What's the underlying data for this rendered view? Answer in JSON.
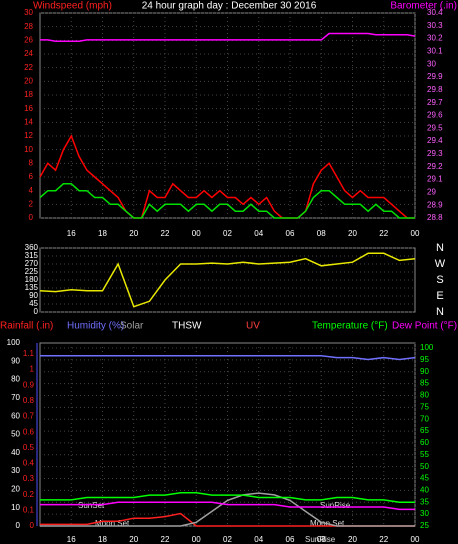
{
  "chart_data": [
    {
      "type": "line",
      "title": "24 hour graph day : December 30 2016",
      "ylabel": "Windspeed (mph)",
      "y2label": "Barometer (.in)",
      "x": [
        0,
        0.5,
        1,
        1.5,
        2,
        2.5,
        3,
        3.5,
        4,
        4.5,
        5,
        5.5,
        6,
        6.5,
        7,
        7.5,
        8,
        8.5,
        9,
        9.5,
        10,
        10.5,
        11,
        11.5,
        12,
        12.5,
        13,
        13.5,
        14,
        14.5,
        15,
        15.5,
        16,
        16.5,
        17,
        17.5,
        18,
        18.5,
        19,
        19.5,
        20,
        20.5,
        21,
        21.5,
        22,
        22.5,
        23,
        23.5,
        24
      ],
      "xlim": [
        0,
        24
      ],
      "xticks": [
        {
          "value": 2,
          "label": "16"
        },
        {
          "value": 4,
          "label": "18"
        },
        {
          "value": 6,
          "label": "20"
        },
        {
          "value": 8,
          "label": "22"
        },
        {
          "value": 10,
          "label": "00"
        },
        {
          "value": 12,
          "label": "02"
        },
        {
          "value": 14,
          "label": "04"
        },
        {
          "value": 16,
          "label": "06"
        },
        {
          "value": 18,
          "label": "08"
        },
        {
          "value": 20,
          "label": "20"
        },
        {
          "value": 22,
          "label": "22"
        },
        {
          "value": 24,
          "label": "00"
        }
      ],
      "ylim": [
        0,
        30
      ],
      "yticks": [
        0,
        2,
        4,
        6,
        8,
        10,
        12,
        14,
        16,
        18,
        20,
        22,
        24,
        26,
        28,
        30
      ],
      "y2lim": [
        28.8,
        30.4
      ],
      "y2ticks": [
        28.8,
        28.9,
        29,
        29.1,
        29.2,
        29.3,
        29.4,
        29.5,
        29.6,
        29.7,
        29.8,
        29.9,
        30,
        30.1,
        30.2,
        30.3,
        30.4
      ],
      "series": [
        {
          "color": "#ff0000",
          "values": [
            6,
            8,
            7,
            10,
            12,
            9,
            7,
            6,
            5,
            4,
            3,
            1,
            0,
            0,
            4,
            3,
            3,
            5,
            4,
            3,
            3,
            4,
            3,
            4,
            3,
            3,
            2,
            3,
            2,
            3,
            1,
            0,
            0,
            0,
            1,
            5,
            7,
            8,
            6,
            4,
            3,
            4,
            3,
            3,
            3,
            2,
            1,
            0,
            0
          ]
        },
        {
          "color": "#00e000",
          "values": [
            3,
            4,
            4,
            5,
            5,
            4,
            4,
            3,
            3,
            2,
            2,
            1,
            0,
            0,
            2,
            1,
            2,
            2,
            2,
            1,
            2,
            2,
            1,
            2,
            2,
            1,
            1,
            2,
            1,
            1,
            0,
            0,
            0,
            0,
            1,
            3,
            4,
            4,
            3,
            2,
            2,
            2,
            1,
            2,
            1,
            1,
            0,
            0,
            0
          ]
        },
        {
          "color": "#ff00ff",
          "axis": "y2",
          "values": [
            30.19,
            30.19,
            30.18,
            30.18,
            30.18,
            30.18,
            30.19,
            30.19,
            30.19,
            30.19,
            30.19,
            30.19,
            30.19,
            30.19,
            30.19,
            30.19,
            30.19,
            30.19,
            30.19,
            30.19,
            30.19,
            30.19,
            30.19,
            30.19,
            30.19,
            30.19,
            30.19,
            30.19,
            30.19,
            30.19,
            30.19,
            30.19,
            30.19,
            30.19,
            30.19,
            30.19,
            30.19,
            30.24,
            30.24,
            30.24,
            30.24,
            30.24,
            30.24,
            30.23,
            30.23,
            30.23,
            30.23,
            30.23,
            30.22
          ]
        }
      ]
    },
    {
      "type": "line",
      "x": [
        0,
        1,
        2,
        3,
        4,
        5,
        6,
        7,
        8,
        9,
        10,
        11,
        12,
        13,
        14,
        15,
        16,
        17,
        18,
        19,
        20,
        21,
        22,
        23,
        24
      ],
      "xlim": [
        0,
        24
      ],
      "ylim": [
        0,
        360
      ],
      "yticks": [
        0,
        45,
        90,
        135,
        180,
        225,
        270,
        315,
        360
      ],
      "y2lim": [
        0,
        360
      ],
      "y2ticks": [
        {
          "value": 360,
          "label": "N"
        },
        {
          "value": 270,
          "label": "W"
        },
        {
          "value": 180,
          "label": "S"
        },
        {
          "value": 90,
          "label": "E"
        },
        {
          "value": 0,
          "label": "N"
        }
      ],
      "series": [
        {
          "color": "#e8e800",
          "values": [
            120,
            115,
            125,
            120,
            120,
            270,
            30,
            60,
            180,
            270,
            270,
            275,
            270,
            280,
            270,
            275,
            280,
            300,
            260,
            270,
            280,
            330,
            330,
            290,
            300
          ]
        }
      ]
    },
    {
      "type": "line",
      "headers": [
        {
          "text": "Rainfall (.in)",
          "color": "#ff2020"
        },
        {
          "text": "Humidity (%)",
          "color": "#7070ff"
        },
        {
          "text": "Solar",
          "color": "#a0a0a0"
        },
        {
          "text": "THSW",
          "color": "#ffffff"
        },
        {
          "text": "UV",
          "color": "#ff4040"
        },
        {
          "text": "Temperature (°F)",
          "color": "#00ff00"
        },
        {
          "text": "Dew Point (°F)",
          "color": "#ff00ff"
        }
      ],
      "x": [
        0,
        1,
        2,
        3,
        4,
        5,
        6,
        7,
        8,
        9,
        10,
        11,
        12,
        13,
        14,
        15,
        16,
        17,
        18,
        19,
        20,
        21,
        22,
        23,
        24
      ],
      "xlim": [
        0,
        24
      ],
      "xticks": [
        {
          "value": 2,
          "label": "16"
        },
        {
          "value": 4,
          "label": "18"
        },
        {
          "value": 6,
          "label": "20"
        },
        {
          "value": 8,
          "label": "22"
        },
        {
          "value": 10,
          "label": "00"
        },
        {
          "value": 12,
          "label": "02"
        },
        {
          "value": 14,
          "label": "04"
        },
        {
          "value": 16,
          "label": "06"
        },
        {
          "value": 18,
          "label": "08"
        },
        {
          "value": 20,
          "label": "20"
        },
        {
          "value": 22,
          "label": "22"
        },
        {
          "value": 24,
          "label": "00"
        }
      ],
      "ylim": [
        0,
        1.1
      ],
      "yticks": [
        0,
        0.1,
        0.2,
        0.3,
        0.4,
        0.5,
        0.6,
        0.7,
        0.8,
        0.9,
        1,
        1.1
      ],
      "hlim": [
        0,
        100
      ],
      "hticks": [
        0,
        10,
        20,
        30,
        40,
        50,
        60,
        70,
        80,
        90,
        100
      ],
      "y2lim": [
        25,
        100
      ],
      "y2ticks": [
        25,
        30,
        35,
        40,
        45,
        50,
        55,
        60,
        65,
        70,
        75,
        80,
        85,
        90,
        95,
        100
      ],
      "annotations": [
        "SunSet",
        "SunRise",
        "Moon Set",
        "Moon Set",
        "SunRise"
      ],
      "series": [
        {
          "color": "#ff2020",
          "values": [
            0.01,
            0.01,
            0.01,
            0.01,
            0.03,
            0.03,
            0.05,
            0.05,
            0.06,
            0.08,
            0,
            0,
            0,
            0,
            0,
            0,
            0,
            0,
            0,
            0,
            0,
            0,
            0,
            0,
            0
          ]
        },
        {
          "color": "#7070ff",
          "axis": "h",
          "values": [
            93,
            93,
            93,
            93,
            93,
            93,
            93,
            93,
            93,
            93,
            93,
            93,
            93,
            93,
            93,
            93,
            93,
            93,
            93,
            92,
            92,
            91,
            92,
            91,
            92
          ]
        },
        {
          "color": "#a0a0a0",
          "axis": "h",
          "values": [
            0,
            0,
            0,
            0,
            0,
            0,
            0,
            0,
            0,
            0,
            2,
            8,
            14,
            17,
            18,
            17,
            14,
            8,
            2,
            0,
            0,
            0,
            0,
            0,
            0
          ]
        },
        {
          "color": "#00ff00",
          "axis": "y2",
          "values": [
            36,
            36,
            36,
            37,
            37,
            37,
            37,
            38,
            38,
            39,
            39,
            38,
            38,
            38,
            37,
            37,
            37,
            36,
            36,
            37,
            37,
            36,
            36,
            35,
            35
          ]
        },
        {
          "color": "#ff00ff",
          "axis": "y2",
          "values": [
            34,
            34,
            34,
            34,
            34,
            35,
            35,
            35,
            35,
            35,
            35,
            35,
            34,
            34,
            34,
            34,
            33,
            33,
            33,
            33,
            33,
            33,
            33,
            32,
            32
          ]
        }
      ]
    }
  ]
}
